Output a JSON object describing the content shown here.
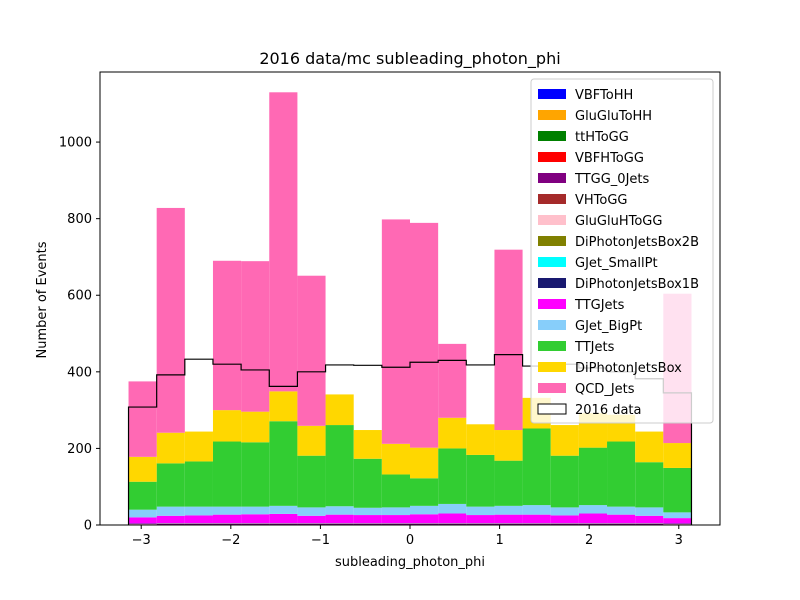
{
  "chart_data": {
    "type": "bar",
    "title": "2016 data/mc subleading_photon_phi",
    "xlabel": "subleading_photon_phi",
    "ylabel": "Number of Events",
    "xlim": [
      -3.46,
      3.46
    ],
    "ylim": [
      0,
      1183
    ],
    "xticks": [
      -3,
      -2,
      -1,
      0,
      1,
      2,
      3
    ],
    "xtick_labels": [
      "−3",
      "−2",
      "−1",
      "0",
      "1",
      "2",
      "3"
    ],
    "yticks": [
      0,
      200,
      400,
      600,
      800,
      1000
    ],
    "ytick_labels": [
      "0",
      "200",
      "400",
      "600",
      "800",
      "1000"
    ],
    "grid": false,
    "legend_position": "upper right",
    "bin_edges": [
      -3.1416,
      -2.8274,
      -2.5133,
      -2.1991,
      -1.885,
      -1.5708,
      -1.2566,
      -0.9425,
      -0.6283,
      -0.3142,
      0.0,
      0.3142,
      0.6283,
      0.9425,
      1.2566,
      1.5708,
      1.885,
      2.1991,
      2.5133,
      2.8274,
      3.1416
    ],
    "stack_order": "first series at bottom",
    "series": [
      {
        "name": "VBFToHH",
        "color": "#0000ff",
        "values": [
          0,
          0,
          0,
          0,
          0,
          0,
          0,
          0,
          0,
          0,
          0,
          0,
          0,
          0,
          0,
          0,
          0,
          0,
          0,
          0
        ]
      },
      {
        "name": "GluGluToHH",
        "color": "#ffa500",
        "values": [
          0,
          0,
          0,
          0,
          0,
          0,
          0,
          0,
          0,
          0,
          0,
          0,
          0,
          0,
          0,
          0,
          0,
          0,
          0,
          0
        ]
      },
      {
        "name": "ttHToGG",
        "color": "#008000",
        "values": [
          0,
          0,
          0,
          0,
          0,
          0,
          0,
          0,
          0,
          0,
          0,
          0,
          0,
          0,
          0,
          0,
          0,
          0,
          0,
          0
        ]
      },
      {
        "name": "VBFHToGG",
        "color": "#ff0000",
        "values": [
          0,
          0,
          0,
          0,
          0,
          0,
          0,
          0,
          0,
          0,
          0,
          0,
          0,
          0,
          0,
          0,
          0,
          0,
          0,
          0
        ]
      },
      {
        "name": "TTGG_0Jets",
        "color": "#800080",
        "values": [
          2,
          3,
          3,
          3,
          3,
          3,
          3,
          3,
          3,
          3,
          3,
          3,
          3,
          3,
          3,
          3,
          3,
          3,
          3,
          2
        ]
      },
      {
        "name": "VHToGG",
        "color": "#a52a2a",
        "values": [
          0,
          0,
          0,
          0,
          0,
          0,
          0,
          0,
          0,
          0,
          0,
          0,
          0,
          0,
          0,
          0,
          0,
          0,
          0,
          0
        ]
      },
      {
        "name": "GluGluHToGG",
        "color": "#ffc0cb",
        "values": [
          1,
          1,
          1,
          1,
          1,
          1,
          1,
          1,
          1,
          1,
          1,
          1,
          1,
          1,
          1,
          1,
          1,
          1,
          1,
          1
        ]
      },
      {
        "name": "DiPhotonJetsBox2B",
        "color": "#808000",
        "values": [
          0,
          0,
          0,
          0,
          0,
          0,
          0,
          0,
          0,
          0,
          0,
          0,
          0,
          0,
          0,
          0,
          0,
          0,
          0,
          0
        ]
      },
      {
        "name": "GJet_SmallPt",
        "color": "#00ffff",
        "values": [
          0,
          0,
          0,
          0,
          0,
          0,
          0,
          0,
          0,
          0,
          0,
          0,
          0,
          0,
          0,
          0,
          0,
          0,
          0,
          0
        ]
      },
      {
        "name": "DiPhotonJetsBox1B",
        "color": "#191970",
        "values": [
          1,
          1,
          1,
          1,
          1,
          1,
          1,
          1,
          1,
          1,
          1,
          1,
          1,
          1,
          1,
          1,
          1,
          1,
          1,
          1
        ]
      },
      {
        "name": "TTGJets",
        "color": "#ff00ff",
        "values": [
          16,
          19,
          20,
          22,
          23,
          24,
          19,
          22,
          21,
          21,
          23,
          25,
          21,
          22,
          22,
          20,
          25,
          22,
          19,
          14
        ]
      },
      {
        "name": "GJet_BigPt",
        "color": "#87cefa",
        "values": [
          20,
          24,
          23,
          21,
          20,
          21,
          22,
          22,
          19,
          20,
          22,
          25,
          22,
          23,
          25,
          21,
          22,
          21,
          22,
          15
        ]
      },
      {
        "name": "TTJets",
        "color": "#32cd32",
        "values": [
          73,
          113,
          118,
          170,
          168,
          221,
          135,
          212,
          128,
          86,
          72,
          145,
          135,
          118,
          200,
          135,
          150,
          170,
          118,
          116
        ]
      },
      {
        "name": "DiPhotonJetsBox",
        "color": "#ffd700",
        "values": [
          65,
          80,
          78,
          82,
          80,
          78,
          78,
          80,
          75,
          80,
          80,
          80,
          80,
          80,
          80,
          80,
          90,
          70,
          80,
          65
        ]
      },
      {
        "name": "QCD_Jets",
        "color": "#ff69b4",
        "values": [
          197,
          587,
          0,
          390,
          393,
          781,
          392,
          0,
          0,
          586,
          587,
          193,
          0,
          471,
          0,
          0,
          0,
          0,
          0,
          390
        ]
      }
    ],
    "data_series": {
      "name": "2016 data",
      "color": "#000000",
      "values": [
        308,
        392,
        433,
        420,
        405,
        362,
        400,
        418,
        417,
        412,
        425,
        430,
        418,
        445,
        415,
        420,
        410,
        400,
        382,
        345
      ]
    }
  }
}
